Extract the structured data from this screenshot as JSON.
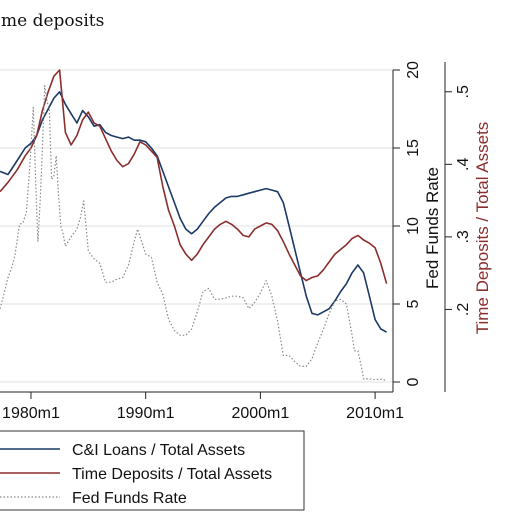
{
  "chart_data": {
    "type": "line",
    "title": "me deposits",
    "x_ticks": [
      "1980m1",
      "1990m1",
      "2000m1",
      "2010m1"
    ],
    "x_tick_values": [
      1980,
      1990,
      2000,
      2010
    ],
    "xlim": [
      1977.3,
      2011.3
    ],
    "y_left": {
      "label": "Fed Funds Rate",
      "ticks": [
        "0",
        "5",
        "10",
        "15",
        "20"
      ],
      "tick_values": [
        0,
        5,
        10,
        15,
        20
      ],
      "range": [
        0,
        20
      ]
    },
    "y_right": {
      "label": "Time Deposits / Total Assets",
      "ticks": [
        ".2",
        ".3",
        ".4",
        ".5"
      ],
      "tick_values": [
        0.2,
        0.3,
        0.4,
        0.5
      ],
      "range": [
        0.1,
        0.53
      ]
    },
    "grid": true,
    "legend_position": "bottom",
    "series": [
      {
        "name": "C&I Loans / Total Assets",
        "color": "#1b3a66",
        "style": "solid",
        "axis": "fed_funds_scale",
        "x": [
          1977.3,
          1978.0,
          1978.8,
          1979.5,
          1980.0,
          1980.5,
          1981.0,
          1981.5,
          1982.0,
          1982.5,
          1983.0,
          1983.5,
          1984.0,
          1984.5,
          1985.0,
          1985.5,
          1986.0,
          1986.5,
          1987.0,
          1987.5,
          1988.0,
          1988.5,
          1989.0,
          1989.5,
          1990.0,
          1990.5,
          1991.0,
          1991.5,
          1992.0,
          1992.5,
          1993.0,
          1993.5,
          1994.0,
          1994.5,
          1995.0,
          1995.5,
          1996.0,
          1996.5,
          1997.0,
          1997.5,
          1998.0,
          1998.5,
          1999.0,
          1999.5,
          2000.0,
          2000.5,
          2001.0,
          2001.5,
          2002.0,
          2002.5,
          2003.0,
          2003.5,
          2004.0,
          2004.5,
          2005.0,
          2005.5,
          2006.0,
          2006.5,
          2007.0,
          2007.5,
          2008.0,
          2008.5,
          2009.0,
          2009.5,
          2010.0,
          2010.5,
          2011.0
        ],
        "y": [
          13.5,
          13.3,
          14.2,
          15.0,
          15.3,
          15.8,
          16.8,
          17.5,
          18.2,
          18.6,
          17.8,
          17.2,
          16.6,
          17.4,
          17.0,
          16.4,
          16.5,
          16.0,
          15.8,
          15.7,
          15.6,
          15.7,
          15.5,
          15.5,
          15.4,
          15.0,
          14.5,
          13.5,
          12.5,
          11.5,
          10.5,
          9.8,
          9.5,
          9.8,
          10.3,
          10.8,
          11.2,
          11.5,
          11.8,
          11.9,
          11.9,
          12.0,
          12.1,
          12.2,
          12.3,
          12.4,
          12.3,
          12.2,
          11.5,
          10.0,
          8.5,
          7.0,
          5.5,
          4.4,
          4.3,
          4.5,
          4.7,
          5.2,
          5.8,
          6.3,
          7.0,
          7.5,
          7.0,
          5.5,
          4.0,
          3.4,
          3.2
        ]
      },
      {
        "name": "Time Deposits / Total Assets",
        "color": "#8b2e2e",
        "style": "solid",
        "axis": "fed_funds_scale",
        "x": [
          1977.3,
          1978.0,
          1978.8,
          1979.5,
          1980.0,
          1980.5,
          1981.0,
          1981.5,
          1982.0,
          1982.5,
          1983.0,
          1983.5,
          1984.0,
          1984.5,
          1985.0,
          1985.5,
          1986.0,
          1986.5,
          1987.0,
          1987.5,
          1988.0,
          1988.5,
          1989.0,
          1989.5,
          1990.0,
          1990.5,
          1991.0,
          1991.5,
          1992.0,
          1992.5,
          1993.0,
          1993.5,
          1994.0,
          1994.5,
          1995.0,
          1995.5,
          1996.0,
          1996.5,
          1997.0,
          1997.5,
          1998.0,
          1998.5,
          1999.0,
          1999.5,
          2000.0,
          2000.5,
          2001.0,
          2001.5,
          2002.0,
          2002.5,
          2003.0,
          2003.5,
          2004.0,
          2004.5,
          2005.0,
          2005.5,
          2006.0,
          2006.5,
          2007.0,
          2007.5,
          2008.0,
          2008.5,
          2009.0,
          2009.5,
          2010.0,
          2010.5,
          2011.0
        ],
        "y": [
          12.2,
          12.8,
          13.6,
          14.5,
          15.0,
          15.8,
          17.4,
          18.6,
          19.6,
          20.0,
          16.0,
          15.2,
          15.8,
          16.8,
          17.3,
          16.6,
          16.4,
          15.6,
          14.8,
          14.2,
          13.8,
          14.0,
          14.6,
          15.4,
          15.2,
          14.8,
          14.4,
          12.5,
          11.0,
          10.0,
          8.8,
          8.2,
          7.8,
          8.2,
          8.8,
          9.3,
          9.8,
          10.1,
          10.3,
          10.1,
          9.8,
          9.4,
          9.3,
          9.8,
          10.0,
          10.2,
          10.1,
          9.7,
          9.0,
          8.2,
          7.5,
          6.8,
          6.5,
          6.7,
          6.8,
          7.2,
          7.7,
          8.2,
          8.5,
          8.8,
          9.2,
          9.4,
          9.1,
          8.9,
          8.6,
          7.6,
          6.3
        ]
      },
      {
        "name": "Fed Funds Rate",
        "color": "#8a8a8a",
        "style": "dotted",
        "axis": "left",
        "x": [
          1977.3,
          1977.6,
          1978.0,
          1978.3,
          1978.6,
          1979.0,
          1979.3,
          1979.6,
          1979.9,
          1980.2,
          1980.4,
          1980.6,
          1980.8,
          1981.0,
          1981.2,
          1981.4,
          1981.6,
          1981.8,
          1982.0,
          1982.2,
          1982.4,
          1982.6,
          1982.8,
          1983.0,
          1983.5,
          1984.0,
          1984.3,
          1984.6,
          1985.0,
          1985.5,
          1986.0,
          1986.5,
          1987.0,
          1987.5,
          1988.0,
          1988.5,
          1989.0,
          1989.3,
          1989.6,
          1990.0,
          1990.5,
          1991.0,
          1991.5,
          1992.0,
          1992.5,
          1993.0,
          1993.5,
          1994.0,
          1994.5,
          1995.0,
          1995.5,
          1996.0,
          1996.5,
          1997.0,
          1997.5,
          1998.0,
          1998.5,
          1999.0,
          1999.5,
          2000.0,
          2000.5,
          2001.0,
          2001.5,
          2002.0,
          2002.5,
          2003.0,
          2003.5,
          2004.0,
          2004.5,
          2005.0,
          2005.5,
          2006.0,
          2006.5,
          2007.0,
          2007.5,
          2008.0,
          2008.2,
          2008.5,
          2008.8,
          2009.0,
          2009.5,
          2010.0,
          2010.5,
          2011.0
        ],
        "y": [
          4.7,
          5.5,
          6.7,
          7.3,
          8.1,
          10.1,
          10.2,
          10.9,
          13.8,
          17.6,
          13.0,
          9.0,
          11.5,
          15.0,
          19.0,
          18.0,
          17.5,
          13.0,
          13.2,
          14.5,
          12.0,
          10.0,
          9.5,
          8.7,
          9.3,
          9.8,
          10.5,
          11.6,
          8.4,
          7.9,
          7.6,
          6.4,
          6.4,
          6.6,
          6.7,
          7.5,
          9.0,
          9.8,
          9.1,
          8.2,
          8.0,
          6.4,
          5.6,
          4.0,
          3.3,
          3.0,
          3.0,
          3.4,
          4.5,
          5.8,
          6.0,
          5.3,
          5.3,
          5.4,
          5.5,
          5.5,
          5.4,
          4.7,
          5.1,
          5.7,
          6.5,
          5.5,
          3.9,
          1.7,
          1.7,
          1.3,
          1.0,
          1.0,
          1.5,
          2.5,
          3.4,
          4.4,
          5.2,
          5.3,
          5.0,
          3.0,
          2.0,
          2.0,
          1.0,
          0.2,
          0.2,
          0.15,
          0.18,
          0.1
        ]
      }
    ]
  }
}
